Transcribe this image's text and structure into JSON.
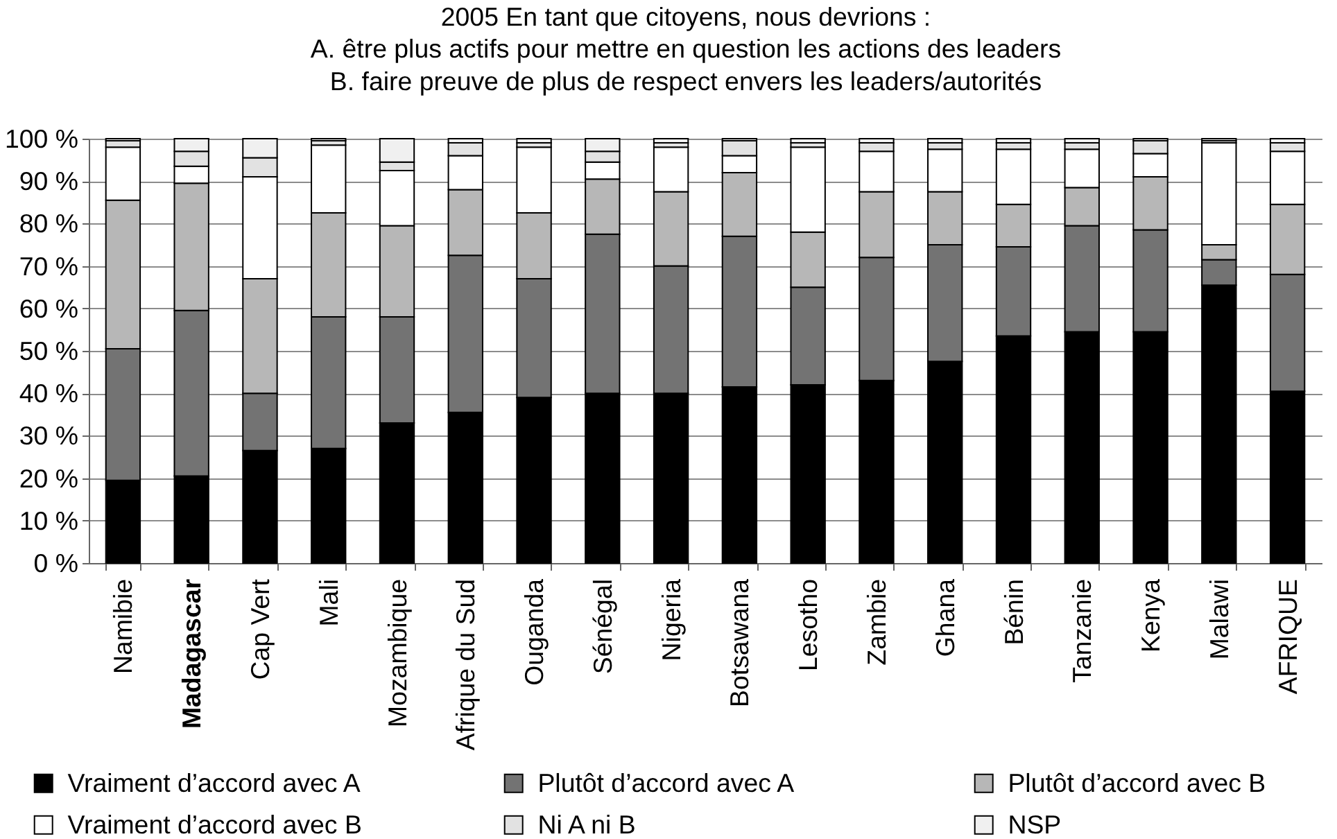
{
  "chart_data": {
    "type": "bar",
    "stacked": true,
    "title": "2005 En tant que citoyens, nous devrions :",
    "subtitle": "A. être plus actifs pour mettre en question les actions des leaders\nB. faire preuve de plus de respect envers les leaders/autorités",
    "categories": [
      "Namibie",
      "Madagascar",
      "Cap Vert",
      "Mali",
      "Mozambique",
      "Afrique du Sud",
      "Ouganda",
      "Sénégal",
      "Nigeria",
      "Botsawana",
      "Lesotho",
      "Zambie",
      "Ghana",
      "Bénin",
      "Tanzanie",
      "Kenya",
      "Malawi",
      "AFRIQUE"
    ],
    "series": [
      {
        "name": "Vraiment d’accord avec A",
        "color": "#000000",
        "values": [
          19.5,
          20.5,
          26.5,
          27,
          33,
          35.5,
          39,
          40,
          40,
          41.5,
          42,
          43,
          47.5,
          53.5,
          54.5,
          54.5,
          65.5,
          40.5
        ]
      },
      {
        "name": "Plutôt d’accord avec A",
        "color": "#737373",
        "values": [
          31,
          39,
          13.5,
          31,
          25,
          37,
          28,
          37.5,
          30,
          35.5,
          23,
          29,
          27.5,
          21,
          25,
          24,
          6,
          27.5
        ]
      },
      {
        "name": "Plutôt d’accord avec B",
        "color": "#b7b7b7",
        "values": [
          35,
          30,
          27,
          24.5,
          21.5,
          15.5,
          15.5,
          13,
          17.5,
          15,
          13,
          15.5,
          12.5,
          10,
          9,
          12.5,
          3.5,
          16.5
        ]
      },
      {
        "name": "Vraiment d’accord avec B",
        "color": "#ffffff",
        "values": [
          12.5,
          4,
          24,
          16,
          13,
          8,
          15.5,
          4,
          10.5,
          4,
          20,
          9.5,
          10,
          13,
          9,
          5.5,
          24,
          12.5
        ]
      },
      {
        "name": "Ni A ni B",
        "color": "#e2e2e2",
        "values": [
          1.5,
          3.5,
          4.5,
          1,
          2,
          3,
          1,
          2.5,
          1,
          3.5,
          1,
          2,
          1.5,
          1.5,
          1.5,
          3,
          0.5,
          2
        ]
      },
      {
        "name": "NSP",
        "color": "#f0f0f0",
        "values": [
          0.5,
          3,
          4.5,
          0.5,
          5.5,
          1,
          1,
          3,
          1,
          0.5,
          1,
          1,
          1,
          1,
          1,
          0.5,
          0.5,
          1
        ]
      }
    ],
    "ylim": [
      0,
      100
    ],
    "yticks": [
      {
        "value": 0,
        "label": "0 %"
      },
      {
        "value": 10,
        "label": "10 %"
      },
      {
        "value": 20,
        "label": "20 %"
      },
      {
        "value": 30,
        "label": "30 %"
      },
      {
        "value": 40,
        "label": "40 %"
      },
      {
        "value": 50,
        "label": "50 %"
      },
      {
        "value": 60,
        "label": "60 %"
      },
      {
        "value": 70,
        "label": "70 %"
      },
      {
        "value": 80,
        "label": "80 %"
      },
      {
        "value": 90,
        "label": "90 %"
      },
      {
        "value": 100,
        "label": "100 %"
      }
    ],
    "grid": "y",
    "legend": "bottom"
  }
}
